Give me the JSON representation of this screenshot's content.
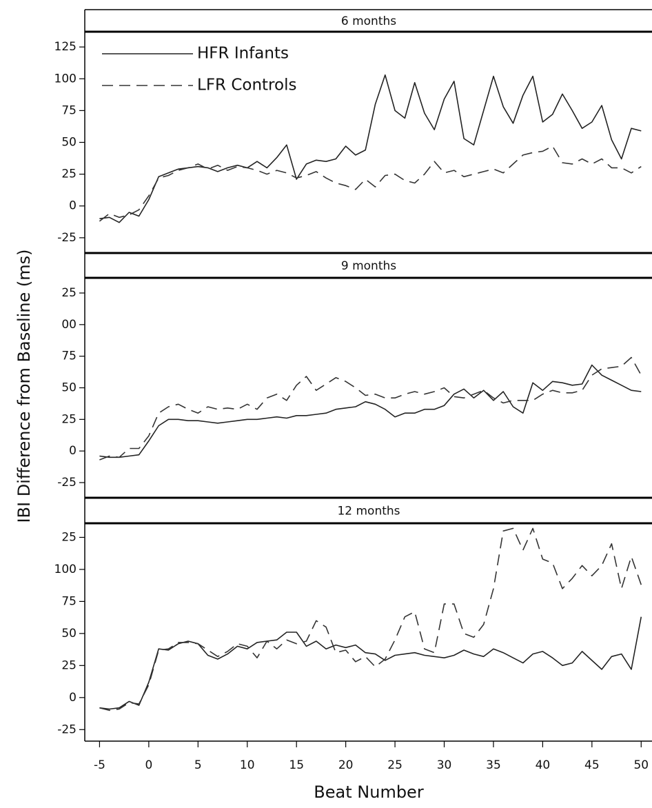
{
  "chart_data": [
    {
      "type": "line",
      "title": "6 months",
      "ylabel": "IBI Difference from Baseline (ms)",
      "legend": "upper left",
      "xlim": [
        -6.5,
        51.1
      ],
      "ylim": [
        -37,
        137
      ],
      "yticks": [
        -25,
        0,
        25,
        50,
        75,
        100,
        125
      ],
      "x": [
        -5,
        -4,
        -3,
        -2,
        -1,
        0,
        1,
        2,
        3,
        4,
        5,
        6,
        7,
        8,
        9,
        10,
        11,
        12,
        13,
        14,
        15,
        16,
        17,
        18,
        19,
        20,
        21,
        22,
        23,
        24,
        25,
        26,
        27,
        28,
        29,
        30,
        31,
        32,
        33,
        34,
        35,
        36,
        37,
        38,
        39,
        40,
        41,
        42,
        43,
        44,
        45,
        46,
        47,
        48,
        49,
        50
      ],
      "series": [
        {
          "name": "HFR Infants",
          "color": "#222222",
          "dash": "solid",
          "values": [
            -10,
            -9,
            -13,
            -5,
            -8,
            5,
            23,
            26,
            29,
            30,
            31,
            30,
            27,
            30,
            32,
            30,
            35,
            30,
            38,
            48,
            21,
            33,
            36,
            35,
            37,
            47,
            40,
            44,
            80,
            103,
            75,
            69,
            97,
            73,
            60,
            84,
            98,
            53,
            48,
            75,
            102,
            78,
            65,
            87,
            102,
            66,
            72,
            88,
            75,
            61,
            66,
            79,
            52,
            37,
            61,
            59
          ]
        },
        {
          "name": "LFR Controls",
          "color": "#333333",
          "dash": "dashed",
          "values": [
            -12,
            -6,
            -9,
            -7,
            -3,
            8,
            22,
            24,
            28,
            30,
            33,
            29,
            32,
            28,
            31,
            30,
            28,
            25,
            28,
            26,
            22,
            24,
            27,
            22,
            18,
            16,
            13,
            21,
            15,
            24,
            25,
            20,
            18,
            25,
            35,
            26,
            28,
            23,
            25,
            27,
            29,
            26,
            33,
            40,
            42,
            43,
            47,
            34,
            33,
            37,
            33,
            37,
            30,
            30,
            26,
            31
          ]
        }
      ]
    },
    {
      "type": "line",
      "title": "9 months",
      "xlim": [
        -6.5,
        51.1
      ],
      "ylim": [
        -37,
        137
      ],
      "yticks": [
        -25,
        0,
        25,
        50,
        75,
        {
          "value": 100,
          "label": "00"
        },
        {
          "value": 125,
          "label": "25"
        }
      ],
      "x": [
        -5,
        -4,
        -3,
        -2,
        -1,
        0,
        1,
        2,
        3,
        4,
        5,
        6,
        7,
        8,
        9,
        10,
        11,
        12,
        13,
        14,
        15,
        16,
        17,
        18,
        19,
        20,
        21,
        22,
        23,
        24,
        25,
        26,
        27,
        28,
        29,
        30,
        31,
        32,
        33,
        34,
        35,
        36,
        37,
        38,
        39,
        40,
        41,
        42,
        43,
        44,
        45,
        46,
        47,
        48,
        49,
        50
      ],
      "series": [
        {
          "color": "#222222",
          "dash": "solid",
          "values": [
            -4,
            -5,
            -5,
            -4,
            -3,
            8,
            20,
            25,
            25,
            24,
            24,
            23,
            22,
            23,
            24,
            25,
            25,
            26,
            27,
            26,
            28,
            28,
            29,
            30,
            33,
            34,
            35,
            39,
            37,
            33,
            27,
            30,
            30,
            33,
            33,
            36,
            45,
            49,
            42,
            48,
            40,
            47,
            35,
            30,
            54,
            48,
            55,
            54,
            52,
            53,
            68,
            60,
            56,
            52,
            48,
            47
          ]
        },
        {
          "color": "#333333",
          "dash": "dashed",
          "values": [
            -7,
            -4,
            -5,
            2,
            2,
            12,
            30,
            35,
            37,
            33,
            30,
            35,
            33,
            34,
            33,
            37,
            33,
            42,
            45,
            40,
            52,
            59,
            48,
            53,
            58,
            55,
            50,
            44,
            45,
            42,
            42,
            45,
            47,
            45,
            47,
            50,
            43,
            42,
            45,
            48,
            42,
            38,
            40,
            40,
            40,
            45,
            48,
            46,
            46,
            48,
            60,
            65,
            66,
            67,
            74,
            60
          ]
        }
      ]
    },
    {
      "type": "line",
      "title": "12 months",
      "xlabel": "Beat Number",
      "xlim": [
        -6.5,
        51.1
      ],
      "xticks": [
        -5,
        0,
        5,
        10,
        15,
        20,
        25,
        30,
        35,
        40,
        45,
        50
      ],
      "ylim": [
        -34,
        136
      ],
      "yticks": [
        -25,
        0,
        25,
        50,
        75,
        100,
        {
          "value": 125,
          "label": "25"
        }
      ],
      "x": [
        -5,
        -4,
        -3,
        -2,
        -1,
        0,
        1,
        2,
        3,
        4,
        5,
        6,
        7,
        8,
        9,
        10,
        11,
        12,
        13,
        14,
        15,
        16,
        17,
        18,
        19,
        20,
        21,
        22,
        23,
        24,
        25,
        26,
        27,
        28,
        29,
        30,
        31,
        32,
        33,
        34,
        35,
        36,
        37,
        38,
        39,
        40,
        41,
        42,
        43,
        44,
        45,
        46,
        47,
        48,
        49,
        50
      ],
      "series": [
        {
          "color": "#222222",
          "dash": "solid",
          "values": [
            -8,
            -9,
            -8,
            -3,
            -6,
            12,
            38,
            37,
            42,
            44,
            42,
            33,
            30,
            34,
            40,
            38,
            43,
            44,
            45,
            51,
            51,
            40,
            44,
            38,
            41,
            39,
            41,
            35,
            34,
            29,
            33,
            34,
            35,
            33,
            32,
            31,
            33,
            37,
            34,
            32,
            38,
            35,
            31,
            27,
            34,
            36,
            31,
            25,
            27,
            36,
            29,
            22,
            32,
            34,
            22,
            63
          ]
        },
        {
          "color": "#333333",
          "dash": "dashed",
          "values": [
            -8,
            -10,
            -9,
            -4,
            -5,
            10,
            37,
            38,
            43,
            43,
            42,
            37,
            32,
            36,
            42,
            40,
            31,
            44,
            38,
            45,
            42,
            44,
            60,
            55,
            35,
            37,
            28,
            32,
            24,
            30,
            45,
            63,
            67,
            38,
            35,
            73,
            73,
            50,
            47,
            57,
            85,
            130,
            132,
            115,
            132,
            108,
            105,
            85,
            93,
            103,
            95,
            103,
            120,
            85,
            110,
            88
          ]
        }
      ]
    }
  ]
}
